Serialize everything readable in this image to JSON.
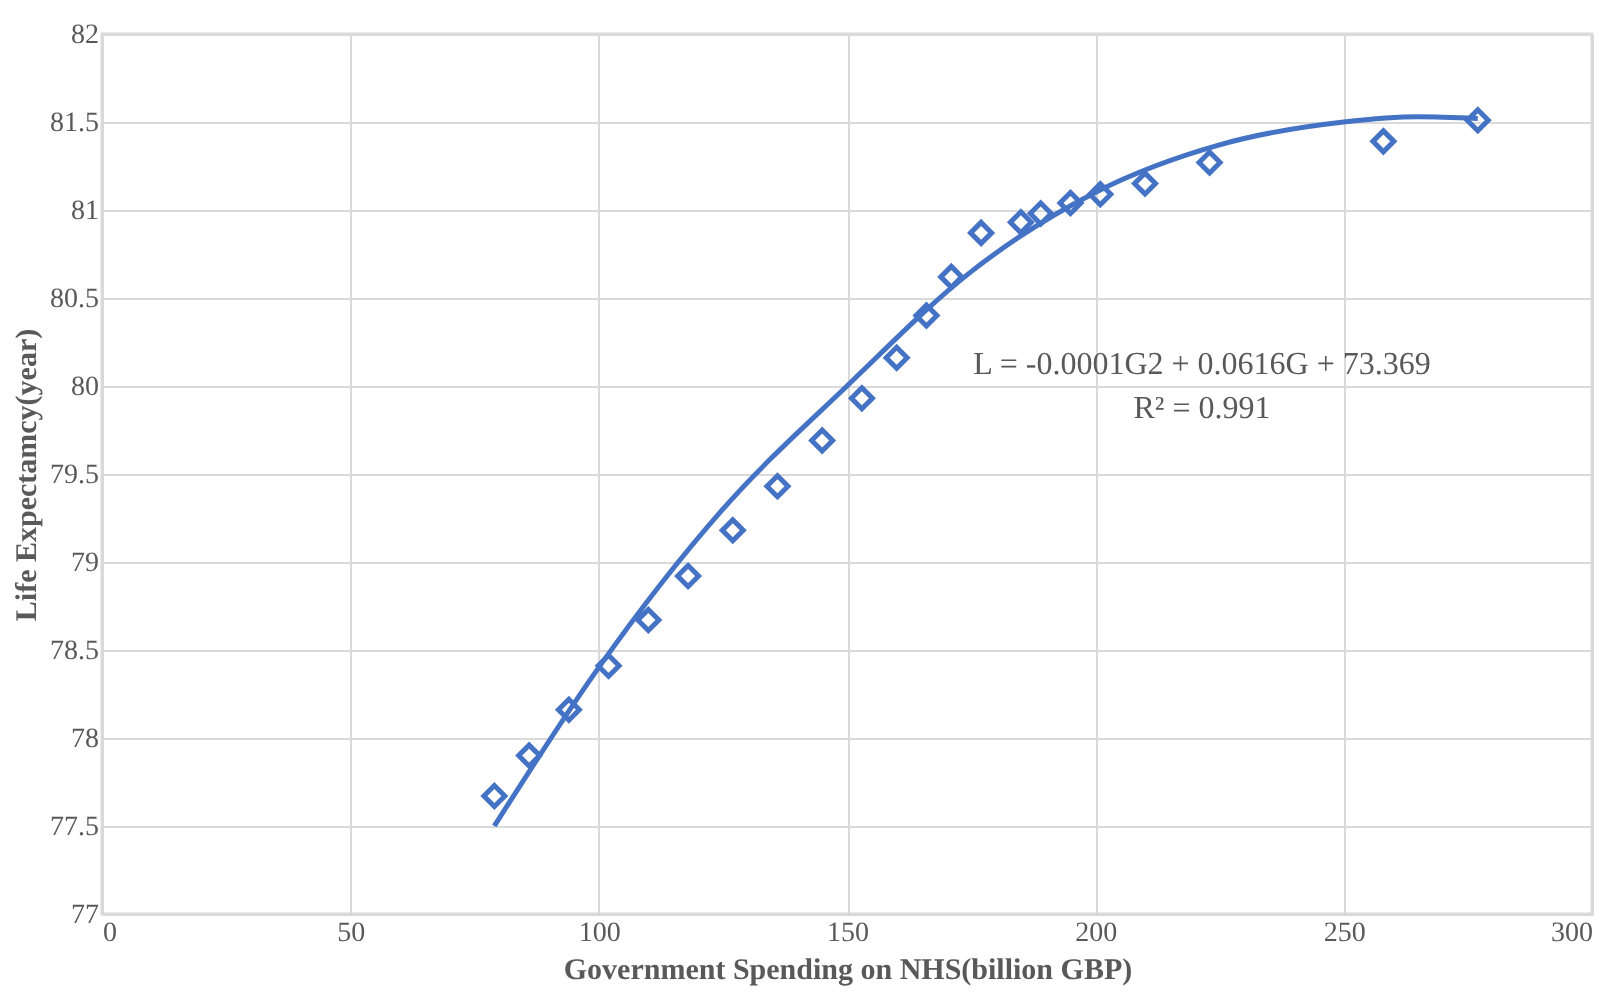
{
  "chart_data": {
    "type": "scatter",
    "xlabel": "Government Spending on NHS(billion GBP)",
    "ylabel": "Life Expectamcy(year)",
    "xlim": [
      0,
      300
    ],
    "xticks": [
      0,
      50,
      100,
      150,
      200,
      250,
      300
    ],
    "ylim": [
      77,
      82
    ],
    "yticks": [
      77,
      77.5,
      78,
      78.5,
      79,
      79.5,
      80,
      80.5,
      81,
      81.5,
      82
    ],
    "grid": true,
    "annotations": [
      "L = -0.0001G2 + 0.0616G + 73.369",
      "R² = 0.991"
    ],
    "series": [
      {
        "color": "#4472c4",
        "marker": "diamond",
        "x": [
          79,
          86,
          94,
          102,
          110,
          118,
          127,
          136,
          145,
          153,
          160,
          166,
          171,
          177,
          185,
          189,
          195,
          201,
          210,
          223,
          258,
          277
        ],
        "values": [
          77.67,
          77.9,
          78.16,
          78.41,
          78.67,
          78.92,
          79.18,
          79.43,
          79.69,
          79.93,
          80.16,
          80.4,
          80.62,
          80.87,
          80.93,
          80.98,
          81.04,
          81.09,
          81.15,
          81.27,
          81.39,
          81.51
        ]
      },
      {
        "type": "line",
        "color": "#4472c4",
        "marker": "none",
        "line_style": "solid",
        "x": [
          79,
          100,
          125,
          150,
          175,
          200,
          225,
          250,
          265,
          277
        ],
        "values": [
          77.5,
          78.4,
          79.3,
          80.0,
          80.65,
          81.1,
          81.37,
          81.5,
          81.53,
          81.52
        ]
      }
    ]
  }
}
